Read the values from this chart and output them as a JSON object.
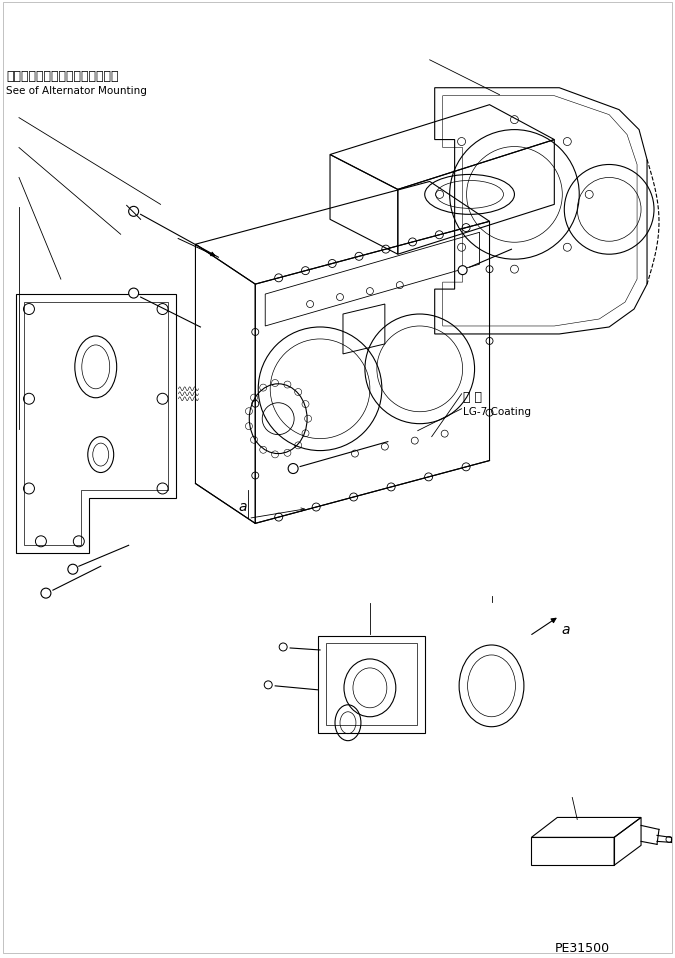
{
  "bg_color": "#ffffff",
  "line_color": "#000000",
  "text_color": "#000000",
  "title_jp": "オルタネータマウンティング参照",
  "title_en": "See of Alternator Mounting",
  "label_coating_jp": "塗 布",
  "label_coating_en": "LG-7 Coating",
  "label_a": "a",
  "part_number": "PE31500",
  "figsize": [
    6.75,
    9.58
  ],
  "dpi": 100
}
